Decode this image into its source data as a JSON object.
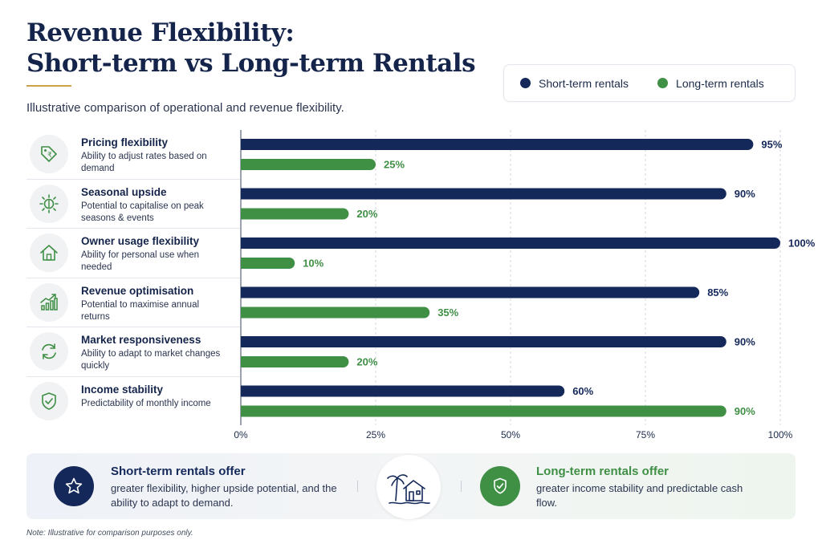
{
  "header": {
    "title_line1": "Revenue Flexibility:",
    "title_line2": "Short-term vs Long-term Rentals",
    "subtitle": "Illustrative comparison of operational and revenue flexibility."
  },
  "legend": {
    "items": [
      {
        "label": "Short-term rentals",
        "color": "#14285a"
      },
      {
        "label": "Long-term rentals",
        "color": "#3f8f45"
      }
    ]
  },
  "rows": [
    {
      "title": "Pricing flexibility",
      "desc": "Ability to adjust rates based on demand",
      "icon": "price-tag-icon"
    },
    {
      "title": "Seasonal upside",
      "desc": "Potential to capitalise on peak seasons & events",
      "icon": "sun-icon"
    },
    {
      "title": "Owner usage flexibility",
      "desc": "Ability for personal use when needed",
      "icon": "house-icon"
    },
    {
      "title": "Revenue optimisation",
      "desc": "Potential to maximise annual returns",
      "icon": "growth-chart-icon"
    },
    {
      "title": "Market responsiveness",
      "desc": "Ability to adapt to market changes quickly",
      "icon": "refresh-icon"
    },
    {
      "title": "Income stability",
      "desc": "Predictability of monthly income",
      "icon": "shield-check-icon"
    }
  ],
  "chart_data": {
    "type": "bar",
    "orientation": "horizontal",
    "categories": [
      "Pricing flexibility",
      "Seasonal upside",
      "Owner usage flexibility",
      "Revenue optimisation",
      "Market responsiveness",
      "Income stability"
    ],
    "series": [
      {
        "name": "Short-term rentals",
        "values": [
          95,
          90,
          100,
          85,
          90,
          60
        ],
        "color": "#14285a"
      },
      {
        "name": "Long-term rentals",
        "values": [
          25,
          20,
          10,
          35,
          20,
          90
        ],
        "color": "#3f8f45"
      }
    ],
    "xlim": [
      0,
      100
    ],
    "x_ticks": [
      0,
      25,
      50,
      75,
      100
    ],
    "x_tick_labels": [
      "0%",
      "25%",
      "50%",
      "75%",
      "100%"
    ],
    "value_labels": [
      [
        "95%",
        "25%"
      ],
      [
        "90%",
        "20%"
      ],
      [
        "100%",
        "10%"
      ],
      [
        "85%",
        "35%"
      ],
      [
        "90%",
        "20%"
      ],
      [
        "60%",
        "90%"
      ]
    ],
    "grid": true,
    "legend_position": "top-right"
  },
  "summary": {
    "left_title": "Short-term rentals offer",
    "left_text": "greater flexibility, higher upside potential, and the ability to adapt to demand.",
    "right_title": "Long-term rentals offer",
    "right_text": "greater income stability and predictable cash flow.",
    "left_icon": "star-icon",
    "center_icon": "beach-house-icon",
    "right_icon": "shield-check-icon"
  },
  "note": "Note: Illustrative for comparison purposes only."
}
